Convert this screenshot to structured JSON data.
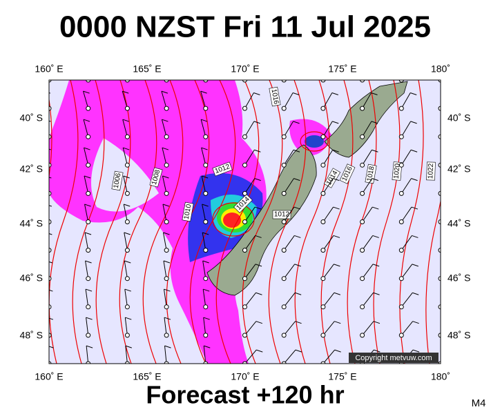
{
  "header": {
    "title": "0000 NZST Fri 11 Jul 2025"
  },
  "map": {
    "lon_labels": [
      "160˚ E",
      "165˚ E",
      "170˚ E",
      "175˚ E",
      "180˚"
    ],
    "lat_labels": [
      "40˚ S",
      "42˚ S",
      "44˚ S",
      "46˚ S",
      "48˚ S"
    ],
    "isobar_labels": [
      "1016",
      "1006",
      "1008",
      "1010",
      "1012",
      "1014",
      "1012",
      "1014",
      "1016",
      "1018",
      "1020",
      "1022"
    ],
    "copyright": "Copyright metvuw.com"
  },
  "footer": {
    "forecast": "Forecast +120 hr",
    "model": "M4"
  }
}
